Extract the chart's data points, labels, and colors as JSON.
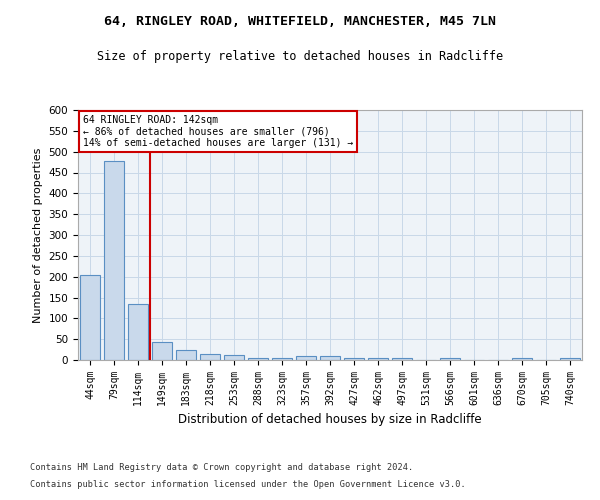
{
  "title1": "64, RINGLEY ROAD, WHITEFIELD, MANCHESTER, M45 7LN",
  "title2": "Size of property relative to detached houses in Radcliffe",
  "xlabel": "Distribution of detached houses by size in Radcliffe",
  "ylabel": "Number of detached properties",
  "categories": [
    "44sqm",
    "79sqm",
    "114sqm",
    "149sqm",
    "183sqm",
    "218sqm",
    "253sqm",
    "288sqm",
    "323sqm",
    "357sqm",
    "392sqm",
    "427sqm",
    "462sqm",
    "497sqm",
    "531sqm",
    "566sqm",
    "601sqm",
    "636sqm",
    "670sqm",
    "705sqm",
    "740sqm"
  ],
  "values": [
    203,
    478,
    135,
    43,
    25,
    14,
    12,
    5,
    5,
    10,
    10,
    5,
    5,
    5,
    0,
    5,
    0,
    0,
    5,
    0,
    5
  ],
  "bar_color": "#c9d9eb",
  "bar_edge_color": "#5a8fc3",
  "grid_color": "#c8d8e8",
  "background_color": "#eef3f8",
  "vline_x_index": 2,
  "vline_color": "#cc0000",
  "annotation_title": "64 RINGLEY ROAD: 142sqm",
  "annotation_line1": "← 86% of detached houses are smaller (796)",
  "annotation_line2": "14% of semi-detached houses are larger (131) →",
  "annotation_box_color": "#ffffff",
  "annotation_border_color": "#cc0000",
  "footer1": "Contains HM Land Registry data © Crown copyright and database right 2024.",
  "footer2": "Contains public sector information licensed under the Open Government Licence v3.0.",
  "ylim": [
    0,
    600
  ],
  "yticks": [
    0,
    50,
    100,
    150,
    200,
    250,
    300,
    350,
    400,
    450,
    500,
    550,
    600
  ]
}
